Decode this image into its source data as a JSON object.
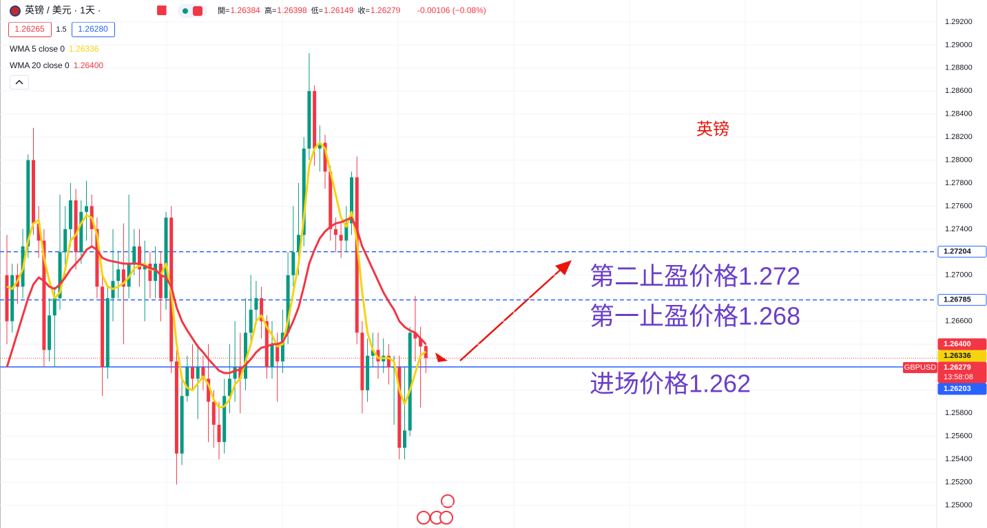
{
  "header": {
    "symbol": "英镑 / 美元 · 1天 ·",
    "ohlc": [
      {
        "label": "開=",
        "value": "1.26384"
      },
      {
        "label": "高=",
        "value": "1.26398"
      },
      {
        "label": "低=",
        "value": "1.26149"
      },
      {
        "label": "收=",
        "value": "1.26279"
      }
    ],
    "change": "-0.00106 (−0.08%)",
    "bid": "1.26265",
    "spread": "1.5",
    "ask": "1.26280"
  },
  "chart_data": {
    "type": "candlestick",
    "title": "英镑",
    "categories": [
      null,
      null,
      null,
      null,
      null,
      null,
      null,
      null,
      null,
      null,
      null,
      null,
      null,
      null,
      null,
      null,
      null,
      null,
      null,
      null,
      null,
      null,
      null,
      null,
      null,
      null,
      null,
      null,
      null,
      null,
      null,
      null,
      null,
      null,
      null,
      null,
      null,
      null,
      null,
      null,
      null,
      null,
      null,
      null,
      null,
      null,
      null,
      null,
      null,
      null,
      null,
      null,
      null,
      null,
      null,
      null,
      null,
      null,
      null,
      null,
      null,
      null,
      null,
      null,
      null,
      null,
      null,
      null,
      null,
      null,
      null,
      null,
      null,
      null,
      null,
      null,
      null,
      null,
      null,
      null
    ],
    "open": [
      1.27,
      1.266,
      1.27,
      1.269,
      1.2725,
      1.28,
      1.2745,
      1.273,
      1.2635,
      1.2665,
      1.268,
      1.272,
      1.274,
      1.2765,
      1.272,
      1.2755,
      1.276,
      1.274,
      1.269,
      1.262,
      1.268,
      1.2695,
      1.2705,
      1.269,
      1.271,
      1.2725,
      1.2705,
      1.271,
      1.2695,
      1.271,
      1.268,
      1.275,
      1.2625,
      1.2545,
      1.2595,
      1.262,
      1.261,
      1.262,
      1.261,
      1.259,
      1.257,
      1.2555,
      1.2595,
      1.261,
      1.262,
      1.261,
      1.265,
      1.267,
      1.268,
      1.266,
      1.262,
      1.264,
      1.2625,
      1.265,
      1.27,
      1.272,
      1.2735,
      1.281,
      1.286,
      1.281,
      1.2815,
      1.279,
      1.274,
      1.2735,
      1.273,
      1.2745,
      1.2785,
      1.265,
      1.26,
      1.263,
      1.2635,
      1.2625,
      1.263,
      1.262,
      1.262,
      1.255,
      1.2565,
      1.265,
      1.2645,
      1.26384
    ],
    "high": [
      1.2735,
      1.271,
      1.271,
      1.274,
      1.2805,
      1.2828,
      1.276,
      1.274,
      1.268,
      1.269,
      1.277,
      1.276,
      1.278,
      1.2775,
      1.2765,
      1.2782,
      1.277,
      1.275,
      1.27,
      1.269,
      1.274,
      1.272,
      1.2745,
      1.277,
      1.274,
      1.274,
      1.273,
      1.272,
      1.2725,
      1.272,
      1.2755,
      1.276,
      1.2635,
      1.261,
      1.263,
      1.264,
      1.264,
      1.263,
      1.264,
      1.26,
      1.259,
      1.261,
      1.264,
      1.266,
      1.265,
      1.268,
      1.27,
      1.2695,
      1.269,
      1.2665,
      1.266,
      1.265,
      1.267,
      1.272,
      1.276,
      1.278,
      1.282,
      1.2893,
      1.2865,
      1.283,
      1.2822,
      1.2795,
      1.275,
      1.2745,
      1.276,
      1.279,
      1.2803,
      1.266,
      1.2645,
      1.265,
      1.265,
      1.2645,
      1.264,
      1.263,
      1.263,
      1.262,
      1.2655,
      1.2682,
      1.2655,
      1.26398
    ],
    "low": [
      1.264,
      1.265,
      1.2675,
      1.268,
      1.2715,
      1.2735,
      1.2715,
      1.262,
      1.2625,
      1.262,
      1.267,
      1.27,
      1.2725,
      1.2705,
      1.271,
      1.273,
      1.2725,
      1.268,
      1.2595,
      1.261,
      1.266,
      1.268,
      1.264,
      1.268,
      1.27,
      1.269,
      1.266,
      1.268,
      1.268,
      1.266,
      1.267,
      1.2615,
      1.2518,
      1.2535,
      1.259,
      1.26,
      1.2575,
      1.26,
      1.2555,
      1.255,
      1.254,
      1.2545,
      1.258,
      1.259,
      1.258,
      1.26,
      1.264,
      1.266,
      1.2645,
      1.261,
      1.261,
      1.259,
      1.2615,
      1.264,
      1.269,
      1.27,
      1.2725,
      1.28,
      1.2795,
      1.279,
      1.2775,
      1.273,
      1.272,
      1.2715,
      1.272,
      1.2735,
      1.264,
      1.258,
      1.259,
      1.262,
      1.261,
      1.2615,
      1.2605,
      1.257,
      1.254,
      1.254,
      1.256,
      1.2625,
      1.2585,
      1.26149
    ],
    "close": [
      1.266,
      1.27,
      1.269,
      1.2725,
      1.28,
      1.2745,
      1.273,
      1.2635,
      1.2665,
      1.268,
      1.272,
      1.274,
      1.2765,
      1.272,
      1.2755,
      1.276,
      1.274,
      1.269,
      1.262,
      1.268,
      1.2695,
      1.2705,
      1.269,
      1.271,
      1.2725,
      1.2705,
      1.271,
      1.2695,
      1.271,
      1.268,
      1.275,
      1.2625,
      1.2545,
      1.2595,
      1.262,
      1.261,
      1.262,
      1.261,
      1.259,
      1.257,
      1.2555,
      1.2595,
      1.261,
      1.262,
      1.261,
      1.265,
      1.267,
      1.268,
      1.266,
      1.262,
      1.264,
      1.2625,
      1.265,
      1.27,
      1.272,
      1.2735,
      1.281,
      1.286,
      1.281,
      1.2815,
      1.279,
      1.274,
      1.2735,
      1.273,
      1.2745,
      1.2785,
      1.265,
      1.26,
      1.263,
      1.2635,
      1.2625,
      1.263,
      1.262,
      1.262,
      1.255,
      1.2565,
      1.265,
      1.2645,
      1.2638,
      1.26279
    ],
    "up_color": "#089981",
    "down_color": "#f23645",
    "series": [
      {
        "name": "WMA 5 close 0",
        "color": "#f5d40f",
        "last_label": "1.26336",
        "values": [
          1.269,
          1.2688,
          1.2695,
          1.2705,
          1.273,
          1.2745,
          1.2748,
          1.2715,
          1.2695,
          1.268,
          1.2685,
          1.2705,
          1.273,
          1.2735,
          1.2745,
          1.2752,
          1.275,
          1.2735,
          1.27,
          1.269,
          1.2688,
          1.269,
          1.2693,
          1.2698,
          1.2706,
          1.2708,
          1.271,
          1.2705,
          1.2705,
          1.27,
          1.271,
          1.2685,
          1.264,
          1.261,
          1.2602,
          1.26,
          1.2606,
          1.2612,
          1.2605,
          1.2592,
          1.2585,
          1.2586,
          1.2592,
          1.2605,
          1.261,
          1.2625,
          1.264,
          1.266,
          1.2665,
          1.2655,
          1.2648,
          1.2638,
          1.264,
          1.266,
          1.2685,
          1.271,
          1.275,
          1.2795,
          1.281,
          1.2815,
          1.281,
          1.279,
          1.277,
          1.275,
          1.2742,
          1.2755,
          1.273,
          1.2685,
          1.265,
          1.2635,
          1.2628,
          1.2628,
          1.2628,
          1.2625,
          1.26,
          1.2588,
          1.26,
          1.2615,
          1.263,
          1.26336
        ]
      },
      {
        "name": "WMA 20 close 0",
        "color": "#f23645",
        "last_label": "1.26400",
        "values": [
          1.262,
          1.2635,
          1.265,
          1.2665,
          1.268,
          1.2692,
          1.2698,
          1.2695,
          1.269,
          1.2688,
          1.2692,
          1.2698,
          1.2705,
          1.271,
          1.2715,
          1.2722,
          1.2725,
          1.2722,
          1.2715,
          1.2713,
          1.2712,
          1.2711,
          1.271,
          1.271,
          1.271,
          1.271,
          1.2708,
          1.2706,
          1.2705,
          1.27,
          1.2698,
          1.269,
          1.2672,
          1.266,
          1.2652,
          1.2645,
          1.2638,
          1.2633,
          1.2627,
          1.2622,
          1.2617,
          1.2615,
          1.2615,
          1.2617,
          1.2618,
          1.2622,
          1.2627,
          1.2633,
          1.2637,
          1.2638,
          1.264,
          1.264,
          1.2642,
          1.265,
          1.266,
          1.2672,
          1.269,
          1.271,
          1.2722,
          1.2732,
          1.2738,
          1.2742,
          1.2745,
          1.2746,
          1.2748,
          1.275,
          1.274,
          1.2725,
          1.2715,
          1.2705,
          1.2695,
          1.2685,
          1.2677,
          1.267,
          1.266,
          1.2655,
          1.2652,
          1.265,
          1.2645,
          1.264
        ]
      }
    ],
    "ylim": [
      1.24803,
      1.29391
    ],
    "yticks": [
      {
        "value": 1.25,
        "label": "1.25000"
      },
      {
        "value": 1.252,
        "label": "1.25200"
      },
      {
        "value": 1.254,
        "label": "1.25400"
      },
      {
        "value": 1.256,
        "label": "1.25600"
      },
      {
        "value": 1.258,
        "label": "1.25800"
      },
      {
        "value": 1.26,
        "label": "1.26000"
      },
      {
        "value": 1.262,
        "label": "1.26200"
      },
      {
        "value": 1.264,
        "label": "1.26400"
      },
      {
        "value": 1.266,
        "label": "1.26600"
      },
      {
        "value": 1.268,
        "label": "1.26800"
      },
      {
        "value": 1.27,
        "label": "1.27000"
      },
      {
        "value": 1.272,
        "label": "1.27200"
      },
      {
        "value": 1.274,
        "label": "1.27400"
      },
      {
        "value": 1.276,
        "label": "1.27600"
      },
      {
        "value": 1.278,
        "label": "1.27800"
      },
      {
        "value": 1.28,
        "label": "1.28000"
      },
      {
        "value": 1.282,
        "label": "1.28200"
      },
      {
        "value": 1.284,
        "label": "1.28400"
      },
      {
        "value": 1.286,
        "label": "1.28600"
      },
      {
        "value": 1.288,
        "label": "1.28800"
      },
      {
        "value": 1.29,
        "label": "1.29000"
      },
      {
        "value": 1.292,
        "label": "1.29200"
      }
    ],
    "grid": true,
    "levels": [
      {
        "value": 1.27204,
        "label": "1.27204",
        "line": "dashed",
        "color": "#2962ff",
        "filled": false
      },
      {
        "value": 1.26785,
        "label": "1.26785",
        "line": "dashed",
        "color": "#2962ff",
        "filled": false
      },
      {
        "value": 1.264,
        "label": "1.26400",
        "line": "none",
        "color": "#f23645",
        "filled": true
      },
      {
        "value": 1.26336,
        "label": "1.26336",
        "line": "none",
        "color": "#f5d40f",
        "filled": true
      },
      {
        "value": 1.26279,
        "label": "1.26279",
        "name": "GBPUSD",
        "sub": "13:58:08",
        "line": "dotted",
        "color": "#f23645",
        "filled": true
      },
      {
        "value": 1.26203,
        "label": "1.26203",
        "line": "solid",
        "color": "#2962ff",
        "filled": true
      }
    ],
    "annotations": [
      "第二止盈价格1.272",
      "第一止盈价格1.268",
      "进场价格1.262"
    ]
  }
}
